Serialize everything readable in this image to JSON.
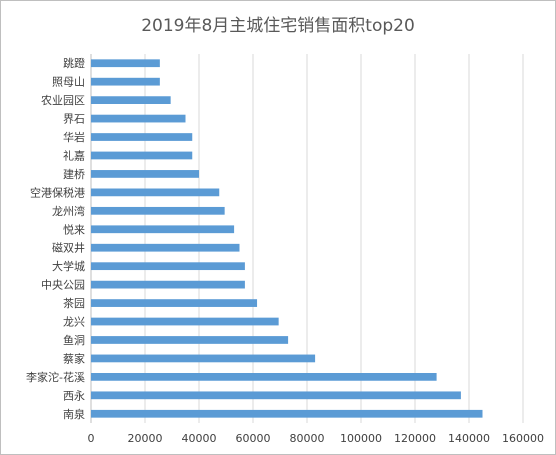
{
  "chart_data": {
    "type": "bar",
    "orientation": "horizontal",
    "title": "2019年8月主城住宅销售面积top20",
    "xlabel": "",
    "ylabel": "",
    "xlim": [
      0,
      160000
    ],
    "xticks": [
      0,
      20000,
      40000,
      60000,
      80000,
      100000,
      120000,
      140000,
      160000
    ],
    "grid": "vertical",
    "legend": "none",
    "bar_color": "#5b9bd5",
    "categories": [
      "南泉",
      "西永",
      "李家沱-花溪",
      "蔡家",
      "鱼洞",
      "龙兴",
      "茶园",
      "中央公园",
      "大学城",
      "磁双井",
      "悦来",
      "龙州湾",
      "空港保税港",
      "建桥",
      "礼嘉",
      "华岩",
      "界石",
      "农业园区",
      "照母山",
      "跳蹬"
    ],
    "values": [
      145000,
      137000,
      128000,
      83000,
      73000,
      69500,
      61500,
      57000,
      57000,
      55000,
      53000,
      49500,
      47500,
      40000,
      37500,
      37500,
      35000,
      29500,
      25500,
      25500
    ]
  }
}
